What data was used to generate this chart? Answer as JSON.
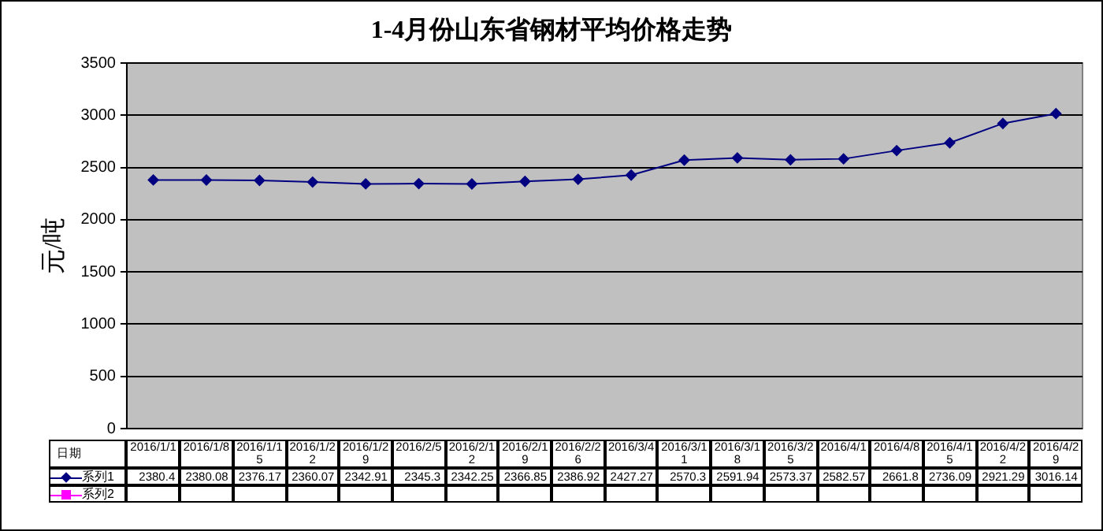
{
  "chart_data": {
    "type": "line",
    "title": "1-4月份山东省钢材平均价格走势",
    "ylabel": "元/吨",
    "categories": [
      "2016/1/1",
      "2016/1/8",
      "2016/1/15",
      "2016/1/22",
      "2016/1/29",
      "2016/2/5",
      "2016/2/12",
      "2016/2/19",
      "2016/2/26",
      "2016/3/4",
      "2016/3/11",
      "2016/3/18",
      "2016/3/25",
      "2016/4/1",
      "2016/4/8",
      "2016/4/15",
      "2016/4/22",
      "2016/4/29"
    ],
    "xlabel": "日期",
    "series": [
      {
        "name": "系列1",
        "color": "#000080",
        "marker": "diamond",
        "values": [
          2380.4,
          2380.08,
          2376.17,
          2360.07,
          2342.91,
          2345.3,
          2342.25,
          2366.85,
          2386.92,
          2427.27,
          2570.3,
          2591.94,
          2573.37,
          2582.57,
          2661.8,
          2736.09,
          2921.29,
          3016.14
        ]
      },
      {
        "name": "系列2",
        "color": "#ff00ff",
        "marker": "square",
        "values": [
          null,
          null,
          null,
          null,
          null,
          null,
          null,
          null,
          null,
          null,
          null,
          null,
          null,
          null,
          null,
          null,
          null,
          null
        ]
      }
    ],
    "ylim": [
      0,
      3500
    ],
    "yticks": [
      0,
      500,
      1000,
      1500,
      2000,
      2500,
      3000,
      3500
    ],
    "grid": "y",
    "legend": "bottom left",
    "tick_labels": "y",
    "data_labels": true,
    "line_style": "solid"
  }
}
